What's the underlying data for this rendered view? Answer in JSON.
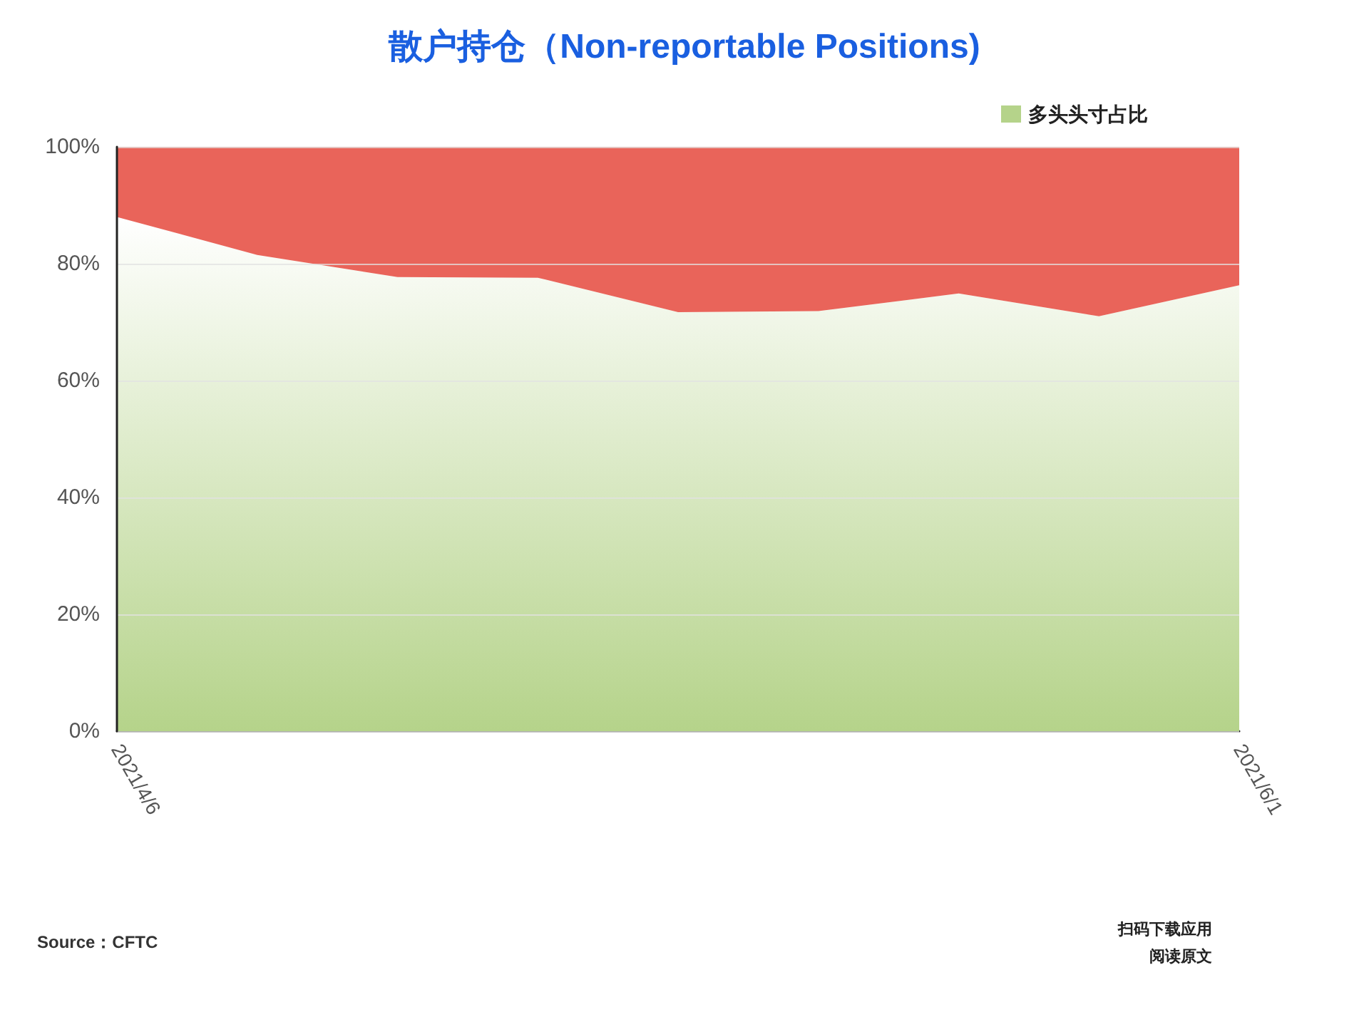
{
  "chart_data": {
    "type": "area",
    "stacked": true,
    "title": "散户持仓（Non-reportable Positions)",
    "categories": [
      "2021/4/6",
      null,
      null,
      null,
      null,
      null,
      null,
      null,
      "2021/6/1"
    ],
    "series": [
      {
        "name": "多头头寸占比",
        "color": "#b5d38a",
        "values": [
          88,
          81.5,
          77.7,
          77.6,
          71.7,
          71.9,
          74.9,
          71,
          76.3
        ]
      },
      {
        "color": "#e9645a",
        "values": [
          12,
          18.5,
          22.3,
          22.4,
          28.3,
          28.1,
          25.1,
          29,
          23.7
        ]
      }
    ],
    "ylim": [
      0,
      100
    ],
    "yticks": [
      {
        "value": 0,
        "label": "0%"
      },
      {
        "value": 20,
        "label": "20%"
      },
      {
        "value": 40,
        "label": "40%"
      },
      {
        "value": 60,
        "label": "60%"
      },
      {
        "value": 80,
        "label": "80%"
      },
      {
        "value": 100,
        "label": "100%"
      }
    ],
    "grid": "y",
    "legend": "top right",
    "annotations": [
      "Source：CFTC",
      "扫码下载应用",
      "阅读原文"
    ]
  }
}
